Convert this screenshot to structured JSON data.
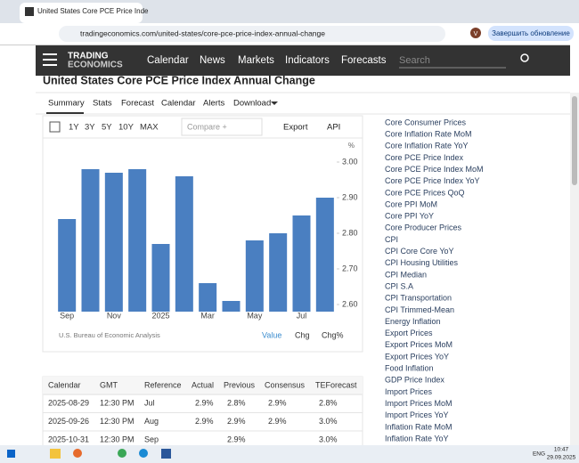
{
  "browser": {
    "tab_title": "United States Core PCE Price Inde",
    "url": "tradingeconomics.com/united-states/core-pce-price-index-annual-change",
    "update_button": "Завершить обновление",
    "profile": "V"
  },
  "nav": {
    "logo": [
      "TRADING",
      "ECONOMICS"
    ],
    "items": [
      "Calendar",
      "News",
      "Markets",
      "Indicators",
      "Forecasts"
    ],
    "search": "Search"
  },
  "page_title": "United States Core PCE Price Index Annual Change",
  "tabs": [
    "Summary",
    "Stats",
    "Forecast",
    "Calendar",
    "Alerts",
    "Download"
  ],
  "toolbar": {
    "ranges": [
      "1Y",
      "3Y",
      "5Y",
      "10Y",
      "MAX"
    ],
    "compare": "Compare +",
    "export": "Export",
    "api": "API"
  },
  "chart_data": {
    "type": "bar",
    "unit": "%",
    "source": "U.S. Bureau of Economic Analysis",
    "color": "#4a7fc1",
    "categories": [
      "Sep",
      null,
      "Nov",
      null,
      "2025",
      null,
      "Mar",
      null,
      "May",
      null,
      "Jul",
      null
    ],
    "values": [
      2.84,
      2.98,
      2.97,
      2.98,
      2.77,
      2.96,
      2.66,
      2.61,
      2.78,
      2.8,
      2.85,
      2.9
    ],
    "ylim": [
      2.58,
      3.01
    ],
    "yticks": [
      {
        "value": 2.6,
        "label": "2.60"
      },
      {
        "value": 2.7,
        "label": "2.70"
      },
      {
        "value": 2.8,
        "label": "2.80"
      },
      {
        "value": 2.9,
        "label": "2.90"
      },
      {
        "value": 3,
        "label": "3.00"
      }
    ],
    "grid": false
  },
  "chart_modes": [
    "Value",
    "Chg",
    "Chg%"
  ],
  "table": {
    "headers": [
      "Calendar",
      "GMT",
      "Reference",
      "Actual",
      "Previous",
      "Consensus",
      "TEForecast"
    ],
    "rows": [
      [
        "2025-08-29",
        "12:30 PM",
        "Jul",
        "2.9%",
        "2.8%",
        "2.9%",
        "2.8%"
      ],
      [
        "2025-09-26",
        "12:30 PM",
        "Aug",
        "2.9%",
        "2.9%",
        "2.9%",
        "3.0%"
      ],
      [
        "2025-10-31",
        "12:30 PM",
        "Sep",
        null,
        "2.9%",
        null,
        "3.0%"
      ]
    ]
  },
  "sidebar": [
    "Core Consumer Prices",
    "Core Inflation Rate MoM",
    "Core Inflation Rate YoY",
    "Core PCE Price Index",
    "Core PCE Price Index MoM",
    "Core PCE Price Index YoY",
    "Core PCE Prices QoQ",
    "Core PPI MoM",
    "Core PPI YoY",
    "Core Producer Prices",
    "CPI",
    "CPI Core Core YoY",
    "CPI Housing Utilities",
    "CPI Median",
    "CPI S.A",
    "CPI Transportation",
    "CPI Trimmed-Mean",
    "Energy Inflation",
    "Export Prices",
    "Export Prices MoM",
    "Export Prices YoY",
    "Food Inflation",
    "GDP Price Index",
    "Import Prices",
    "Import Prices MoM",
    "Import Prices YoY",
    "Inflation Rate MoM",
    "Inflation Rate YoY"
  ],
  "taskbar": {
    "lang": "ENG",
    "time": "10:47",
    "date": "29.09.2025"
  }
}
